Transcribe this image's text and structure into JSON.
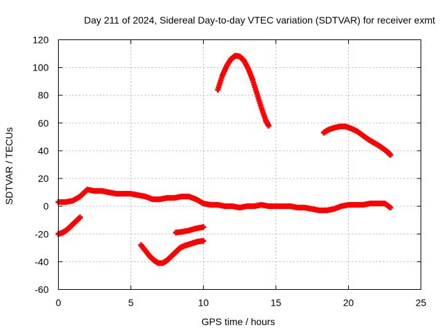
{
  "chart_data": {
    "type": "scatter",
    "title": "Day 211 of 2024, Sidereal Day-to-day VTEC variation (SDTVAR) for receiver exmt",
    "xlabel": "GPS time / hours",
    "ylabel": "SDTVAR / TECUs",
    "xlim": [
      0,
      25
    ],
    "ylim": [
      -60,
      120
    ],
    "xticks": [
      0,
      5,
      10,
      15,
      20,
      25
    ],
    "yticks": [
      -60,
      -40,
      -20,
      0,
      20,
      40,
      60,
      80,
      100,
      120
    ],
    "grid": true,
    "color": "#ff0000",
    "series": [
      {
        "name": "main-track",
        "x": [
          0,
          0.5,
          1.0,
          1.5,
          2.0,
          2.5,
          3.0,
          3.5,
          4.0,
          4.5,
          5.0,
          5.5,
          6.0,
          6.5,
          7.0,
          7.5,
          8.0,
          8.5,
          9.0,
          9.5,
          10.0,
          10.5,
          11.0,
          11.5,
          12.0,
          12.5,
          13.0,
          13.5,
          14.0,
          14.5,
          15.0,
          15.5,
          16.0,
          16.5,
          17.0,
          17.5,
          18.0,
          18.5,
          19.0,
          19.5,
          20.0,
          20.5,
          21.0,
          21.5,
          22.0,
          22.5,
          22.9
        ],
        "values": [
          3,
          3,
          4,
          7,
          12,
          11,
          11,
          10,
          9,
          9,
          9,
          8,
          7,
          5,
          5,
          6,
          6,
          7,
          7,
          5,
          2,
          1,
          1,
          0,
          0,
          -1,
          0,
          0,
          1,
          0,
          0,
          0,
          0,
          -1,
          -1,
          -2,
          -3,
          -3,
          -2,
          0,
          1,
          1,
          1,
          2,
          2,
          2,
          -1
        ]
      },
      {
        "name": "arc-high",
        "x": [
          11.0,
          11.3,
          11.6,
          11.9,
          12.2,
          12.5,
          12.8,
          13.1,
          13.4,
          13.7,
          14.0,
          14.3,
          14.5
        ],
        "values": [
          84,
          94,
          101,
          106,
          108.5,
          108,
          105,
          99,
          91,
          81,
          71,
          62,
          58
        ]
      },
      {
        "name": "arc-right",
        "x": [
          18.3,
          18.6,
          19.0,
          19.4,
          19.8,
          20.2,
          20.6,
          21.0,
          21.4,
          21.8,
          22.2,
          22.6,
          22.9
        ],
        "values": [
          53,
          55,
          56.5,
          57.5,
          57.5,
          56,
          54,
          51,
          48,
          45.5,
          43,
          40,
          37
        ]
      },
      {
        "name": "segment-low-left",
        "x": [
          0,
          0.3,
          0.6,
          0.9,
          1.2,
          1.5
        ],
        "values": [
          -20,
          -19,
          -17,
          -14,
          -11,
          -8
        ]
      },
      {
        "name": "arc-low",
        "x": [
          5.7,
          6.0,
          6.3,
          6.6,
          6.9,
          7.2,
          7.5,
          7.8,
          8.1,
          8.4,
          8.7,
          9.0,
          9.3,
          9.6,
          10.0
        ],
        "values": [
          -28,
          -32,
          -36,
          -39,
          -41,
          -41,
          -39,
          -36,
          -33,
          -30,
          -28.5,
          -27.5,
          -26.5,
          -25.5,
          -25
        ]
      },
      {
        "name": "segment-mid",
        "x": [
          8.1,
          8.5,
          9.0,
          9.5,
          10.0
        ],
        "values": [
          -19,
          -18.5,
          -17.5,
          -16,
          -15
        ]
      }
    ]
  }
}
